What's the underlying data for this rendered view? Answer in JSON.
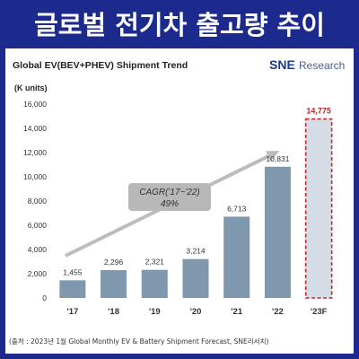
{
  "headline": "글로벌 전기차 출고량 추이",
  "logo": {
    "brand": "SNE",
    "suffix": "Research"
  },
  "source_note": "(출처 : 2023년 1월 Global Monthly EV & Battery Shipment Forecast, SNE리서치)",
  "colors": {
    "background": "#1b2a8c",
    "bar": "#7f98ad",
    "forecast_fill": "#d4dde5",
    "forecast_border": "#c0282d",
    "arrow": "#bcbcbc"
  },
  "chart_data": {
    "type": "bar",
    "title": "Global EV(BEV+PHEV)  Shipment Trend",
    "ylabel": "(K units)",
    "ylim": [
      0,
      16000
    ],
    "yticks": [
      "0",
      "2,000",
      "4,000",
      "6,000",
      "8,000",
      "10,000",
      "12,000",
      "14,000",
      "16,000"
    ],
    "categories": [
      "'17",
      "'18",
      "'19",
      "'20",
      "'21",
      "'22",
      "'23F"
    ],
    "values": [
      1455,
      2296,
      2321,
      3214,
      6713,
      10831,
      14775
    ],
    "value_labels": [
      "1,455",
      "2,296",
      "2,321",
      "3,214",
      "6,713",
      "10,831",
      "14,775"
    ],
    "forecast_index": 6,
    "annotation": {
      "line1": "CAGR('17~'22)",
      "line2": "49%"
    }
  }
}
